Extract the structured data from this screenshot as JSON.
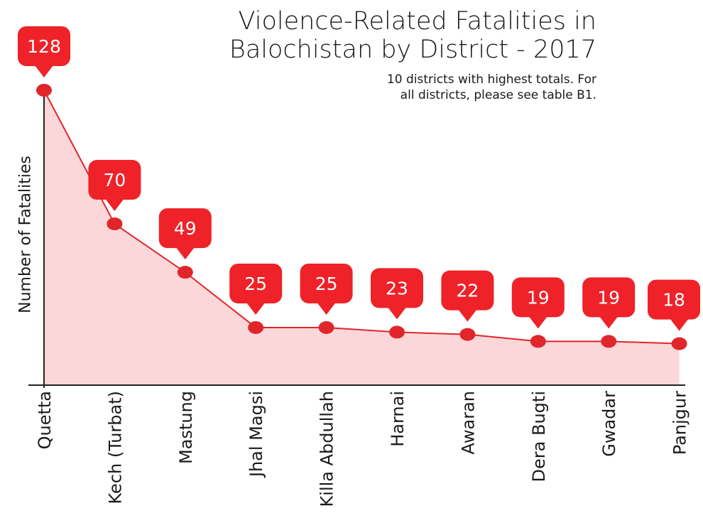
{
  "chart_data": {
    "type": "line",
    "title_lines": [
      "Violence-Related Fatalities in",
      "Balochistan by District - 2017"
    ],
    "subtitle_lines": [
      "10 districts with highest totals. For",
      "all districts, please see table B1."
    ],
    "ylabel": "Number of Fatalities",
    "xlabel": "",
    "categories": [
      "Quetta",
      "Kech (Turbat)",
      "Mastung",
      "Jhal Magsi",
      "Killa Abdullah",
      "Harnai",
      "Awaran",
      "Dera Bugti",
      "Gwadar",
      "Panjgur"
    ],
    "values": [
      128,
      70,
      49,
      25,
      25,
      23,
      22,
      19,
      19,
      18
    ],
    "ylim": [
      0,
      130
    ],
    "grid": false,
    "area_fill": true,
    "data_labels": true,
    "colors": {
      "line": "#e0262b",
      "marker": "#e0262b",
      "callout": "#ee2228",
      "area": "#fbd7d9",
      "axis": "#222222"
    }
  }
}
